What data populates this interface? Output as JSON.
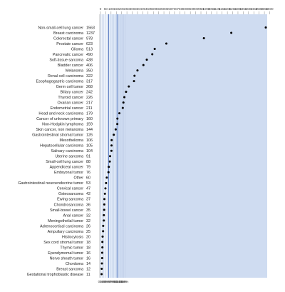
{
  "chart_data": {
    "type": "scatter",
    "categories": [
      "Non-small-cell lung cancer",
      "Breast carcinoma",
      "Colorectal cancer",
      "Prostate cancer",
      "Glioma",
      "Pancreatic cancer",
      "Soft-tissue sarcoma",
      "Bladder cancer",
      "Melanoma",
      "Renal cell carcinoma",
      "Esophagogastric carcinoma",
      "Germ cell tumor",
      "Biliary cancer",
      "Thyroid cancer",
      "Ovarian cancer",
      "Endometrial cancer",
      "Head and neck carcinoma",
      "Cancer of unknown primary",
      "Non-Hodgkin lymphoma",
      "Skin cancer, non melanoma",
      "Gastrointestinal stromal tumor",
      "Mesothelioma",
      "Hepatocellular carcinoma",
      "Salivary carcinoma",
      "Uterine sarcoma",
      "Small-cell lung cancer",
      "Appendiceal cancer",
      "Embryonal tumor",
      "Other",
      "Gastrointestinal neuroendocrine tumor",
      "Cervical cancer",
      "Osteosarcoma",
      "Ewing sarcoma",
      "Chondrosarcoma",
      "Small-bowel cancer",
      "Anal cancer",
      "Meningothelial tumor",
      "Adrenocortical carcinoma",
      "Ampullary carcinoma",
      "Histiocytosis",
      "Sex cord stromal tumor",
      "Thymic tumor",
      "Ependymomal tumor",
      "Nerve sheath tumor",
      "Chordoma",
      "Breast sarcoma",
      "Gestational trophoblastic disease"
    ],
    "values": [
      1563,
      1237,
      978,
      623,
      513,
      490,
      438,
      406,
      350,
      322,
      317,
      268,
      242,
      226,
      217,
      211,
      179,
      160,
      159,
      144,
      126,
      106,
      105,
      104,
      91,
      88,
      79,
      76,
      60,
      53,
      47,
      42,
      37,
      36,
      35,
      32,
      32,
      26,
      25,
      20,
      18,
      18,
      16,
      16,
      14,
      12,
      11
    ],
    "top_axis_ticks": [
      "0",
      "50",
      "100",
      "150",
      "200",
      "250",
      "300",
      "350",
      "400",
      "450",
      "500",
      "550",
      "600",
      "650",
      "700",
      "750",
      "800",
      "850",
      "900",
      "950",
      "1000",
      "1050",
      "1100",
      "1150",
      "1200",
      "1250",
      "1300",
      "1350",
      "1400",
      "1450",
      "1500",
      "1550",
      "1600"
    ],
    "bottom_axis_ticks": [
      "0%",
      "1%",
      "2%",
      "3%",
      "4%",
      "5%",
      "6%",
      "7%",
      "8%",
      "9%",
      "10%",
      "11%",
      "12%",
      "13%",
      "14%",
      "15%"
    ],
    "xlim": [
      0,
      1600
    ],
    "grid": true,
    "colors": {
      "band_light": "#eef3fb",
      "band_mid": "#dfe9f7",
      "band_dark": "#cfdcf1",
      "grid": "#b9c9e4",
      "major_line": "#3d63b8",
      "point": "#000000"
    }
  }
}
